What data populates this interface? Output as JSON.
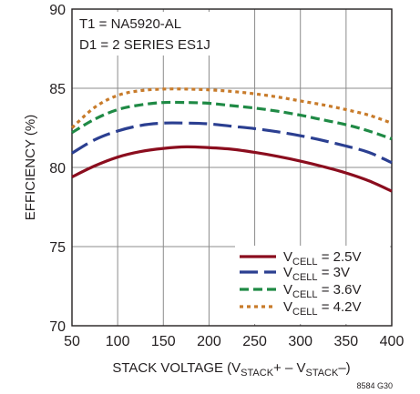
{
  "chart_data": {
    "type": "line",
    "xlabel": "STACK VOLTAGE (V",
    "xlabel_sub1": "STACK",
    "xlabel_mid": "+ – V",
    "xlabel_sub2": "STACK",
    "xlabel_end": "–)",
    "ylabel": "EFFICIENCY (%)",
    "xlim": [
      50,
      400
    ],
    "ylim": [
      70,
      90
    ],
    "xticks": [
      "50",
      "100",
      "150",
      "200",
      "250",
      "300",
      "350",
      "400"
    ],
    "yticks": [
      "70",
      "75",
      "80",
      "85",
      "90"
    ],
    "grid": true,
    "annotations": [
      "T1 = NA5920-AL",
      "D1 = 2 SERIES ES1J"
    ],
    "figure_id": "8584 G30",
    "legend_position": "bottom-right",
    "series": [
      {
        "label_prefix": "V",
        "label_sub": "CELL",
        "label_suffix": " = 2.5V",
        "color": "#8b0d1e",
        "dash": "solid",
        "x": [
          50,
          75,
          100,
          125,
          150,
          175,
          200,
          225,
          250,
          275,
          300,
          325,
          350,
          375,
          400
        ],
        "y": [
          79.4,
          80.1,
          80.65,
          81.0,
          81.2,
          81.3,
          81.25,
          81.15,
          80.95,
          80.7,
          80.4,
          80.05,
          79.65,
          79.15,
          78.5
        ]
      },
      {
        "label_prefix": "V",
        "label_sub": "CELL",
        "label_suffix": " = 3V",
        "color": "#2b3f91",
        "dash": "long",
        "x": [
          50,
          75,
          100,
          125,
          150,
          175,
          200,
          225,
          250,
          275,
          300,
          325,
          350,
          375,
          400
        ],
        "y": [
          80.9,
          81.75,
          82.3,
          82.65,
          82.8,
          82.8,
          82.75,
          82.6,
          82.45,
          82.25,
          82.0,
          81.7,
          81.35,
          80.95,
          80.3
        ]
      },
      {
        "label_prefix": "V",
        "label_sub": "CELL",
        "label_suffix": " = 3.6V",
        "color": "#1f8a45",
        "dash": "medium",
        "x": [
          50,
          75,
          100,
          125,
          150,
          175,
          200,
          225,
          250,
          275,
          300,
          325,
          350,
          375,
          400
        ],
        "y": [
          82.2,
          83.05,
          83.65,
          83.95,
          84.1,
          84.1,
          84.05,
          83.9,
          83.75,
          83.55,
          83.3,
          83.0,
          82.7,
          82.3,
          81.8
        ]
      },
      {
        "label_prefix": "V",
        "label_sub": "CELL",
        "label_suffix": " = 4.2V",
        "color": "#c87b2a",
        "dash": "dotted",
        "x": [
          50,
          75,
          100,
          125,
          150,
          175,
          200,
          225,
          250,
          275,
          300,
          325,
          350,
          375,
          400
        ],
        "y": [
          82.5,
          83.8,
          84.55,
          84.85,
          84.95,
          84.95,
          84.9,
          84.8,
          84.65,
          84.45,
          84.2,
          83.95,
          83.65,
          83.3,
          82.8
        ]
      }
    ]
  }
}
